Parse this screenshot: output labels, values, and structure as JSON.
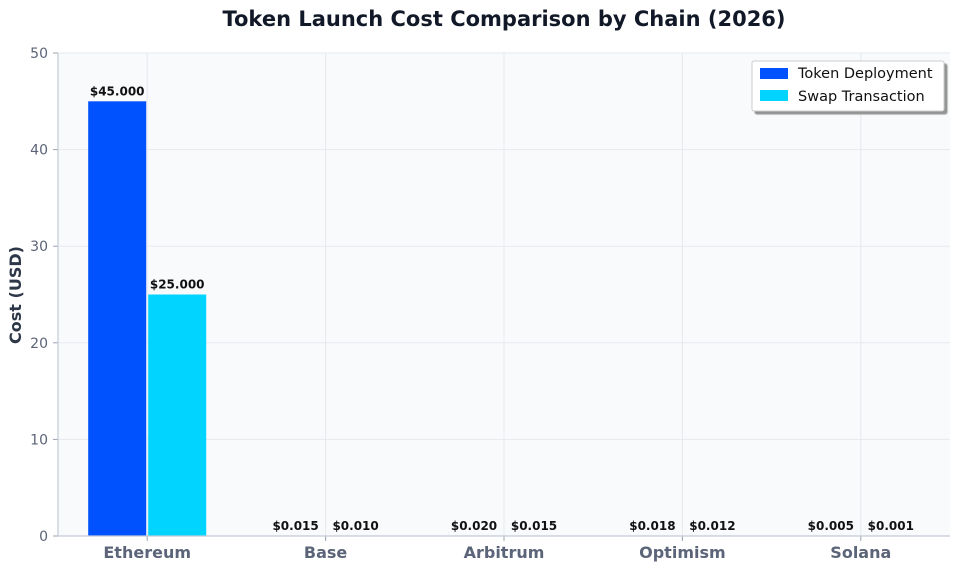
{
  "chart_data": {
    "type": "bar",
    "title": "Token Launch Cost Comparison by Chain (2026)",
    "xlabel": "",
    "ylabel": "Cost (USD)",
    "ylim": [
      0,
      50
    ],
    "yticks": [
      "0",
      "10",
      "20",
      "30",
      "40",
      "50"
    ],
    "categories": [
      "Ethereum",
      "Base",
      "Arbitrum",
      "Optimism",
      "Solana"
    ],
    "series": [
      {
        "name": "Token Deployment",
        "color": "#0052ff",
        "values": [
          45.0,
          0.015,
          0.02,
          0.018,
          0.005
        ],
        "labels": [
          "$45.000",
          "$0.015",
          "$0.020",
          "$0.018",
          "$0.005"
        ]
      },
      {
        "name": "Swap Transaction",
        "color": "#00d4ff",
        "values": [
          25.0,
          0.01,
          0.015,
          0.012,
          0.001
        ],
        "labels": [
          "$25.000",
          "$0.010",
          "$0.015",
          "$0.012",
          "$0.001"
        ]
      }
    ],
    "grid": true,
    "legend_position": "top-right"
  }
}
